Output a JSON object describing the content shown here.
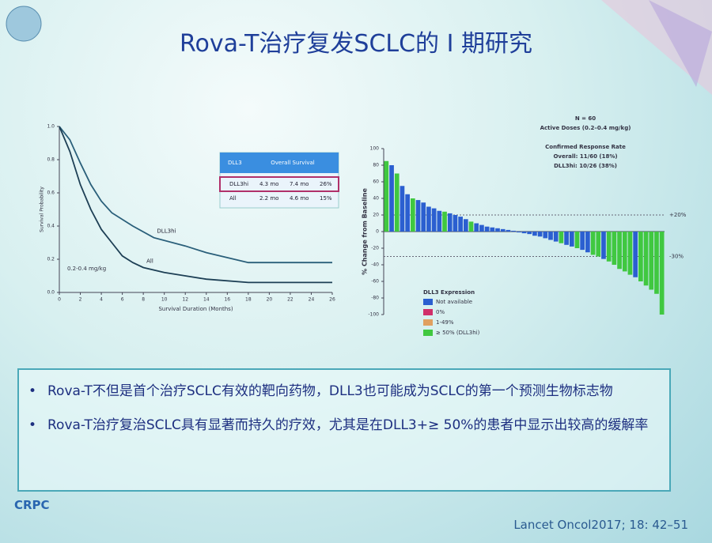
{
  "header": {
    "title": "Rova-T治疗复发SCLC的 I 期研究"
  },
  "survival_chart": {
    "type": "line",
    "x_label": "Survival Duration (Months)",
    "y_label": "Survival Probability",
    "annotation": "0.2-0.4 mg/kg",
    "xlim": [
      0,
      26
    ],
    "xticks": [
      0,
      2,
      4,
      6,
      8,
      10,
      12,
      14,
      16,
      18,
      20,
      22,
      24,
      26
    ],
    "ylim": [
      0,
      1
    ],
    "yticks": [
      {
        "value": 0,
        "label": "0.0"
      },
      0.2,
      0.4,
      0.6,
      0.8,
      {
        "value": 1,
        "label": "1.0"
      }
    ],
    "series": [
      {
        "name": "DLL3hi",
        "color": "#2a5f7a",
        "x": [
          0,
          1,
          2,
          3,
          4,
          5,
          7,
          9,
          12,
          14,
          18,
          26
        ],
        "values": [
          1,
          0.92,
          0.78,
          0.65,
          0.55,
          0.48,
          0.4,
          0.33,
          0.28,
          0.24,
          0.18,
          0.18
        ]
      },
      {
        "name": "All",
        "color": "#1d3f55",
        "x": [
          0,
          1,
          2,
          3,
          4,
          5,
          6,
          7,
          8,
          10,
          12,
          14,
          18,
          26
        ],
        "values": [
          1,
          0.85,
          0.65,
          0.5,
          0.38,
          0.3,
          0.22,
          0.18,
          0.15,
          0.12,
          0.1,
          0.08,
          0.06,
          0.06
        ]
      }
    ],
    "table": {
      "header": [
        "DLL3",
        "Overall Survival"
      ],
      "rows": [
        [
          "DLL3hi",
          "4.3 mo",
          "7.4 mo",
          "26%"
        ],
        [
          "All",
          "2.2 mo",
          "4.6 mo",
          "15%"
        ]
      ]
    }
  },
  "waterfall_chart": {
    "type": "bar",
    "y_label": "% Change from Baseline",
    "ylim": [
      -100,
      100
    ],
    "yticks": [
      -100,
      -80,
      -60,
      -40,
      -20,
      0,
      20,
      40,
      60,
      80,
      100
    ],
    "reference_lines": [
      {
        "value": 20,
        "label": "+20%"
      },
      {
        "value": -30,
        "label": "-30%"
      }
    ],
    "notes": [
      "N = 60",
      "Active Doses (0.2–0.4 mg/kg)",
      "Confirmed Response Rate",
      "Overall: 11/60 (18%)",
      "DLL3hi: 10/26 (38%)"
    ],
    "legend": {
      "title": "DLL3 Expression",
      "items": [
        {
          "label": "Not available",
          "color": "#2b5fd0"
        },
        {
          "label": "0%",
          "color": "#d0306a"
        },
        {
          "label": "1-49%",
          "color": "#e0a060"
        },
        {
          "label": "≥ 50% (DLL3hi)",
          "color": "#40c840"
        }
      ]
    },
    "values": [
      85,
      80,
      70,
      55,
      45,
      40,
      38,
      35,
      30,
      28,
      25,
      24,
      22,
      20,
      18,
      15,
      12,
      10,
      8,
      6,
      5,
      4,
      3,
      2,
      1,
      -1,
      -2,
      -3,
      -5,
      -6,
      -8,
      -10,
      -12,
      -14,
      -16,
      -18,
      -20,
      -22,
      -25,
      -28,
      -30,
      -33,
      -36,
      -40,
      -45,
      -48,
      -52,
      -55,
      -60,
      -65,
      -70,
      -75,
      -100
    ],
    "groups": [
      3,
      0,
      3,
      0,
      0,
      3,
      0,
      0,
      0,
      0,
      0,
      3,
      0,
      0,
      0,
      0,
      3,
      0,
      0,
      0,
      0,
      0,
      0,
      0,
      0,
      0,
      0,
      0,
      0,
      0,
      0,
      0,
      0,
      3,
      0,
      0,
      3,
      0,
      0,
      3,
      3,
      0,
      3,
      3,
      3,
      3,
      3,
      0,
      3,
      3,
      3,
      3,
      3
    ]
  },
  "bullets": [
    "Rova-T不但是首个治疗SCLC有效的靶向药物，DLL3也可能成为SCLC的第一个预测生物标志物",
    "Rova-T治疗复治SCLC具有显著而持久的疗效，尤其是在DLL3+≥ 50%的患者中显示出较高的缓解率"
  ],
  "citation": "Lancet Oncol2017; 18: 42–51",
  "logo": "CRPC"
}
